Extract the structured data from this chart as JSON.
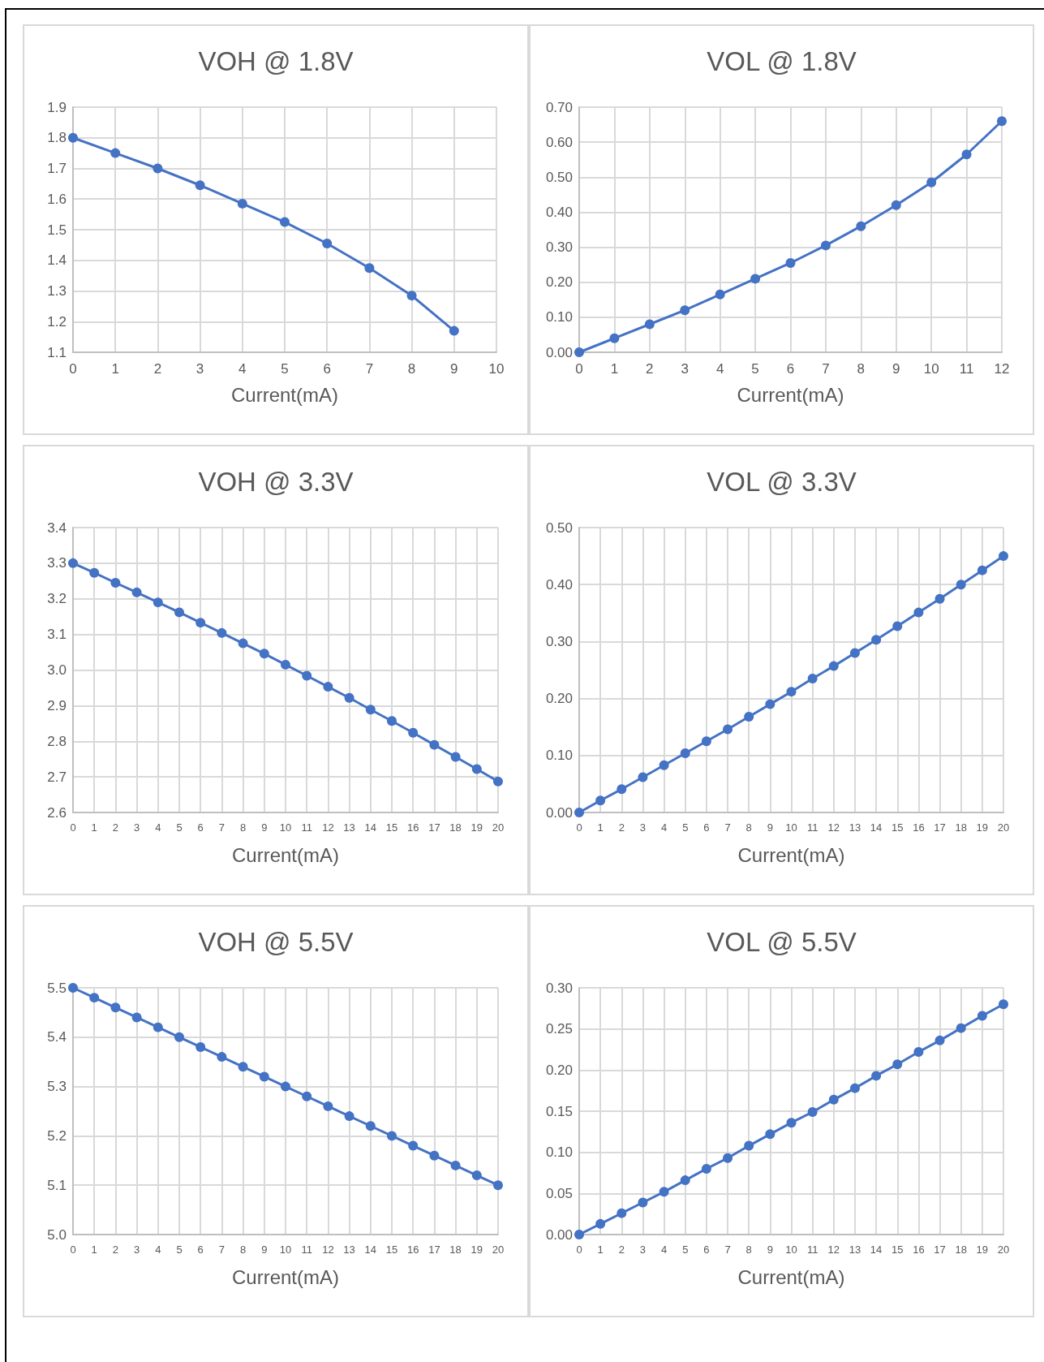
{
  "chart_data": [
    {
      "type": "line",
      "title": "VOH @ 1.8V",
      "xlabel": "Current(mA)",
      "x": [
        0,
        1,
        2,
        3,
        4,
        5,
        6,
        7,
        8,
        9
      ],
      "xlim": [
        0,
        10
      ],
      "xticks": [
        0,
        1,
        2,
        3,
        4,
        5,
        6,
        7,
        8,
        9,
        10
      ],
      "ylim": [
        1.1,
        1.9
      ],
      "yticks": [
        1.1,
        1.2,
        1.3,
        1.4,
        1.5,
        1.6,
        1.7,
        1.8,
        1.9
      ],
      "grid": true,
      "marker": "circle",
      "line_style": "solid",
      "series": [
        {
          "color": "#4472c4",
          "values": [
            1.8,
            1.75,
            1.7,
            1.645,
            1.585,
            1.525,
            1.455,
            1.375,
            1.285,
            1.17
          ]
        }
      ]
    },
    {
      "type": "line",
      "title": "VOL @ 1.8V",
      "xlabel": "Current(mA)",
      "x": [
        0,
        1,
        2,
        3,
        4,
        5,
        6,
        7,
        8,
        9,
        10,
        11,
        12
      ],
      "xlim": [
        0,
        12
      ],
      "xticks": [
        0,
        1,
        2,
        3,
        4,
        5,
        6,
        7,
        8,
        9,
        10,
        11,
        12
      ],
      "ylim": [
        0,
        0.7
      ],
      "yticks": [
        {
          "value": 0,
          "label": "0.00"
        },
        {
          "value": 0.1,
          "label": "0.10"
        },
        {
          "value": 0.2,
          "label": "0.20"
        },
        {
          "value": 0.3,
          "label": "0.30"
        },
        {
          "value": 0.4,
          "label": "0.40"
        },
        {
          "value": 0.5,
          "label": "0.50"
        },
        {
          "value": 0.6,
          "label": "0.60"
        },
        {
          "value": 0.7,
          "label": "0.70"
        }
      ],
      "grid": true,
      "marker": "circle",
      "line_style": "solid",
      "series": [
        {
          "color": "#4472c4",
          "values": [
            0,
            0.04,
            0.08,
            0.12,
            0.165,
            0.21,
            0.255,
            0.305,
            0.36,
            0.42,
            0.485,
            0.565,
            0.66
          ]
        }
      ]
    },
    {
      "type": "line",
      "title": "VOH @ 3.3V",
      "xlabel": "Current(mA)",
      "x": [
        0,
        1,
        2,
        3,
        4,
        5,
        6,
        7,
        8,
        9,
        10,
        11,
        12,
        13,
        14,
        15,
        16,
        17,
        18,
        19,
        20
      ],
      "xlim": [
        0,
        20
      ],
      "xticks": [
        0,
        1,
        2,
        3,
        4,
        5,
        6,
        7,
        8,
        9,
        10,
        11,
        12,
        13,
        14,
        15,
        16,
        17,
        18,
        19,
        20
      ],
      "ylim": [
        2.6,
        3.4
      ],
      "yticks": [
        2.6,
        2.7,
        2.8,
        2.9,
        {
          "value": 3,
          "label": "3.0"
        },
        3.1,
        3.2,
        3.3,
        3.4
      ],
      "grid": true,
      "marker": "circle",
      "line_style": "solid",
      "series": [
        {
          "color": "#4472c4",
          "values": [
            3.3,
            3.273,
            3.245,
            3.218,
            3.19,
            3.162,
            3.133,
            3.104,
            3.075,
            3.046,
            3.015,
            2.984,
            2.953,
            2.922,
            2.889,
            2.857,
            2.824,
            2.79,
            2.756,
            2.722,
            2.687
          ]
        }
      ]
    },
    {
      "type": "line",
      "title": "VOL @ 3.3V",
      "xlabel": "Current(mA)",
      "x": [
        0,
        1,
        2,
        3,
        4,
        5,
        6,
        7,
        8,
        9,
        10,
        11,
        12,
        13,
        14,
        15,
        16,
        17,
        18,
        19,
        20
      ],
      "xlim": [
        0,
        20
      ],
      "xticks": [
        0,
        1,
        2,
        3,
        4,
        5,
        6,
        7,
        8,
        9,
        10,
        11,
        12,
        13,
        14,
        15,
        16,
        17,
        18,
        19,
        20
      ],
      "ylim": [
        0,
        0.5
      ],
      "yticks": [
        {
          "value": 0,
          "label": "0.00"
        },
        {
          "value": 0.1,
          "label": "0.10"
        },
        {
          "value": 0.2,
          "label": "0.20"
        },
        {
          "value": 0.3,
          "label": "0.30"
        },
        {
          "value": 0.4,
          "label": "0.40"
        },
        {
          "value": 0.5,
          "label": "0.50"
        }
      ],
      "grid": true,
      "marker": "circle",
      "line_style": "solid",
      "series": [
        {
          "color": "#4472c4",
          "values": [
            0,
            0.021,
            0.041,
            0.062,
            0.083,
            0.104,
            0.125,
            0.146,
            0.168,
            0.19,
            0.212,
            0.235,
            0.257,
            0.28,
            0.303,
            0.327,
            0.351,
            0.375,
            0.4,
            0.425,
            0.45
          ]
        }
      ]
    },
    {
      "type": "line",
      "title": "VOH @ 5.5V",
      "xlabel": "Current(mA)",
      "x": [
        0,
        1,
        2,
        3,
        4,
        5,
        6,
        7,
        8,
        9,
        10,
        11,
        12,
        13,
        14,
        15,
        16,
        17,
        18,
        19,
        20
      ],
      "xlim": [
        0,
        20
      ],
      "xticks": [
        0,
        1,
        2,
        3,
        4,
        5,
        6,
        7,
        8,
        9,
        10,
        11,
        12,
        13,
        14,
        15,
        16,
        17,
        18,
        19,
        20
      ],
      "ylim": [
        5.0,
        5.5
      ],
      "yticks": [
        {
          "value": 5,
          "label": "5.0"
        },
        5.1,
        5.2,
        5.3,
        5.4,
        5.5
      ],
      "grid": true,
      "marker": "circle",
      "line_style": "solid",
      "series": [
        {
          "color": "#4472c4",
          "values": [
            5.5,
            5.48,
            5.46,
            5.44,
            5.42,
            5.4,
            5.38,
            5.36,
            5.34,
            5.32,
            5.3,
            5.28,
            5.26,
            5.24,
            5.22,
            5.2,
            5.18,
            5.16,
            5.14,
            5.12,
            5.1
          ]
        }
      ]
    },
    {
      "type": "line",
      "title": "VOL @ 5.5V",
      "xlabel": "Current(mA)",
      "x": [
        0,
        1,
        2,
        3,
        4,
        5,
        6,
        7,
        8,
        9,
        10,
        11,
        12,
        13,
        14,
        15,
        16,
        17,
        18,
        19,
        20
      ],
      "xlim": [
        0,
        20
      ],
      "xticks": [
        0,
        1,
        2,
        3,
        4,
        5,
        6,
        7,
        8,
        9,
        10,
        11,
        12,
        13,
        14,
        15,
        16,
        17,
        18,
        19,
        20
      ],
      "ylim": [
        0,
        0.3
      ],
      "yticks": [
        {
          "value": 0,
          "label": "0.00"
        },
        {
          "value": 0.05,
          "label": "0.05"
        },
        {
          "value": 0.1,
          "label": "0.10"
        },
        {
          "value": 0.15,
          "label": "0.15"
        },
        {
          "value": 0.2,
          "label": "0.20"
        },
        {
          "value": 0.25,
          "label": "0.25"
        },
        {
          "value": 0.3,
          "label": "0.30"
        }
      ],
      "grid": true,
      "marker": "circle",
      "line_style": "solid",
      "series": [
        {
          "color": "#4472c4",
          "values": [
            0,
            0.013,
            0.026,
            0.039,
            0.052,
            0.066,
            0.08,
            0.093,
            0.108,
            0.122,
            0.136,
            0.149,
            0.164,
            0.178,
            0.193,
            0.207,
            0.222,
            0.236,
            0.251,
            0.266,
            0.28
          ]
        }
      ]
    }
  ]
}
